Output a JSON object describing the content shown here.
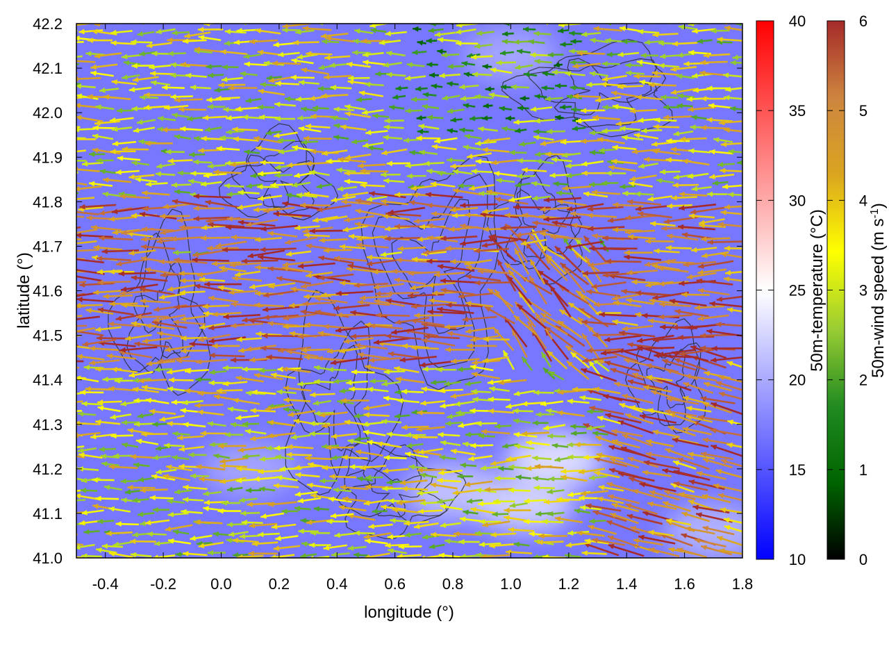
{
  "chart_data": {
    "type": "heatmap",
    "xlabel": "longitude (°)",
    "ylabel": "latitude (°)",
    "xlim": [
      -0.5,
      1.8
    ],
    "ylim": [
      41.0,
      42.2
    ],
    "x_ticks": [
      "-0.4",
      "-0.2",
      "0.0",
      "0.2",
      "0.4",
      "0.6",
      "0.8",
      "1.0",
      "1.2",
      "1.4",
      "1.6",
      "1.8"
    ],
    "x_tick_values": [
      -0.4,
      -0.2,
      0.0,
      0.2,
      0.4,
      0.6,
      0.8,
      1.0,
      1.2,
      1.4,
      1.6,
      1.8
    ],
    "y_ticks": [
      "41.0",
      "41.1",
      "41.2",
      "41.3",
      "41.4",
      "41.5",
      "41.6",
      "41.7",
      "41.8",
      "41.9",
      "42.0",
      "42.1",
      "42.2"
    ],
    "y_tick_values": [
      41.0,
      41.1,
      41.2,
      41.3,
      41.4,
      41.5,
      41.6,
      41.7,
      41.8,
      41.9,
      42.0,
      42.1,
      42.2
    ],
    "temperature_colorbar": {
      "label": "50m-temperature (°C)",
      "range": [
        10,
        40
      ],
      "ticks": [
        "10",
        "15",
        "20",
        "25",
        "30",
        "35",
        "40"
      ],
      "tick_values": [
        10,
        15,
        20,
        25,
        30,
        35,
        40
      ],
      "colors": [
        "#0000ff",
        "#ffffff",
        "#ff0000"
      ]
    },
    "wind_colorbar": {
      "label": "50m-wind speed (m s",
      "label_sup": "-1",
      "label_end": ")",
      "range": [
        0,
        6
      ],
      "ticks": [
        "0",
        "1",
        "2",
        "3",
        "4",
        "5",
        "6"
      ],
      "tick_values": [
        0,
        1,
        2,
        3,
        4,
        5,
        6
      ],
      "colors": [
        "#000000",
        "#006400",
        "#228b22",
        "#9acd32",
        "#ffff00",
        "#daa520",
        "#cd853f",
        "#a52a2a"
      ]
    },
    "temperature_field_summary": {
      "typical": 17,
      "warmer_patches": [
        {
          "lon": 0.8,
          "lat": 41.15,
          "temp": 22
        },
        {
          "lon": 1.05,
          "lat": 41.12,
          "temp": 23
        },
        {
          "lon": 1.15,
          "lat": 41.22,
          "temp": 24
        },
        {
          "lon": 1.7,
          "lat": 41.06,
          "temp": 21
        },
        {
          "lon": 0.1,
          "lat": 41.2,
          "temp": 20
        },
        {
          "lon": 1.0,
          "lat": 42.13,
          "temp": 20
        }
      ]
    },
    "wind_field_summary": {
      "prevailing_direction": "westward (from east)",
      "speed_range": [
        0,
        6
      ],
      "strong_bands_lat": [
        41.5,
        41.62,
        41.75
      ]
    }
  }
}
